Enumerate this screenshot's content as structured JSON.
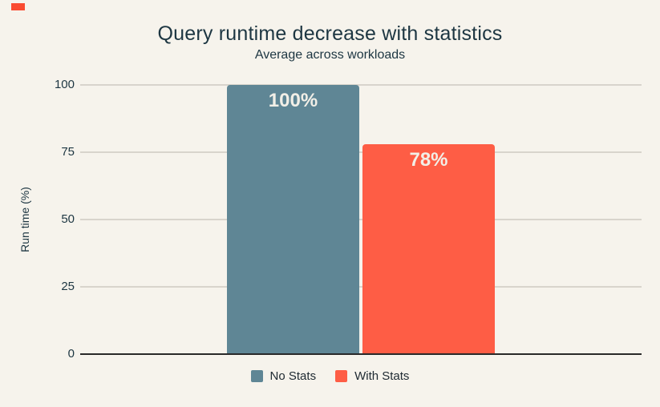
{
  "chart_data": {
    "type": "bar",
    "title": "Query runtime decrease with statistics",
    "subtitle": "Average across workloads",
    "categories": [
      "No Stats",
      "With Stats"
    ],
    "values": [
      100,
      78
    ],
    "bar_labels": [
      "100%",
      "78%"
    ],
    "bar_colors": [
      "#5f8695",
      "#fe5d45"
    ],
    "xlabel": "",
    "ylabel": "Run time (%)",
    "yticks": [
      0,
      25,
      50,
      75,
      100
    ],
    "ylim": [
      0,
      100
    ],
    "grid": "horizontal",
    "legend": {
      "position": "bottom",
      "entries": [
        {
          "label": "No Stats",
          "color": "#5f8695"
        },
        {
          "label": "With Stats",
          "color": "#fe5d45"
        }
      ]
    }
  },
  "colors": {
    "background": "#f6f3ec",
    "text_dark": "#1d3642",
    "gridline": "#d8d4cc",
    "baseline": "#292929",
    "bar_label_text": "#f2efe7",
    "corner_mark": "#fa4b31"
  }
}
